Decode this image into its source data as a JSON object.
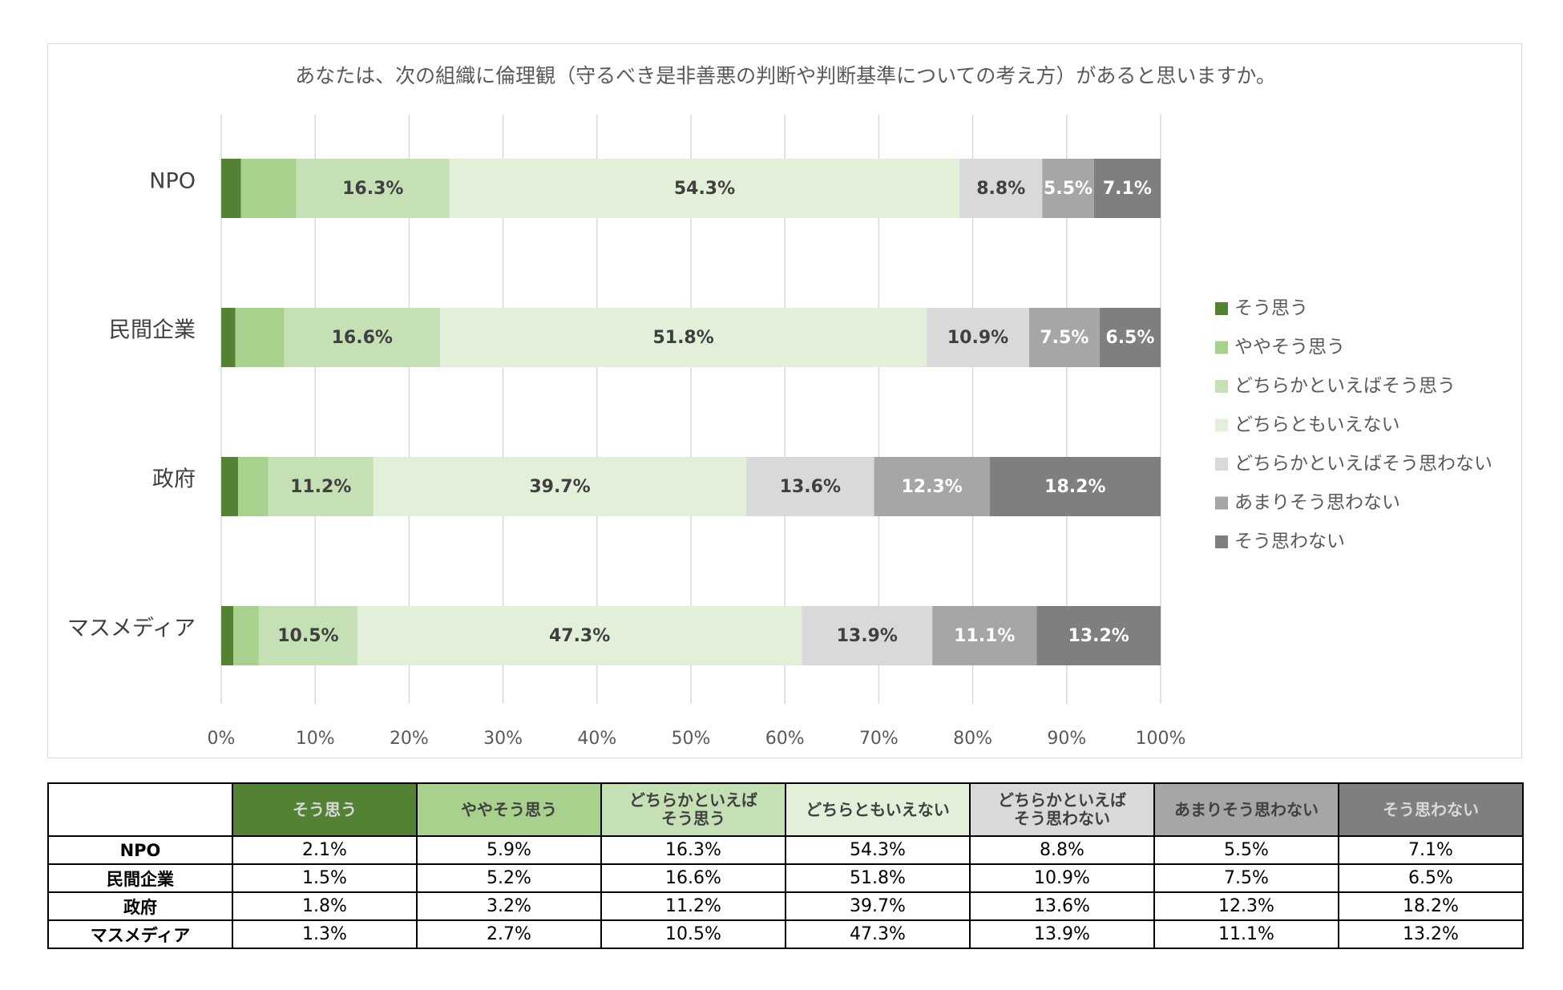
{
  "chart_data": {
    "type": "bar",
    "orientation": "horizontal",
    "stacked": "percent",
    "title": "あなたは、次の組織に倫理観（守るべき是非善悪の判断や判断基準についての考え方）があると思いますか。",
    "categories": [
      "NPO",
      "民間企業",
      "政府",
      "マスメディア"
    ],
    "series": [
      {
        "name": "そう思う",
        "color": "#548235",
        "label_color": "#ffffff",
        "values": [
          2.1,
          1.5,
          1.8,
          1.3
        ]
      },
      {
        "name": "ややそう思う",
        "color": "#a9d18e",
        "label_color": "#ffffff",
        "values": [
          5.9,
          5.2,
          3.2,
          2.7
        ]
      },
      {
        "name": "どちらかといえばそう思う",
        "color": "#c5e0b4",
        "label_color": "#404040",
        "values": [
          16.3,
          16.6,
          11.2,
          10.5
        ]
      },
      {
        "name": "どちらともいえない",
        "color": "#e2f0d9",
        "label_color": "#404040",
        "values": [
          54.3,
          51.8,
          39.7,
          47.3
        ]
      },
      {
        "name": "どちらかといえばそう思わない",
        "color": "#d9d9d9",
        "label_color": "#404040",
        "values": [
          8.8,
          10.9,
          13.6,
          13.9
        ]
      },
      {
        "name": "あまりそう思わない",
        "color": "#a6a6a6",
        "label_color": "#ffffff",
        "values": [
          5.5,
          7.5,
          12.3,
          11.1
        ]
      },
      {
        "name": "そう思わない",
        "color": "#7f7f7f",
        "label_color": "#ffffff",
        "values": [
          7.1,
          6.5,
          18.2,
          13.2
        ]
      }
    ],
    "data_labels": [
      [
        null,
        null,
        "16.3%",
        "54.3%",
        "8.8%",
        "5.5%",
        "7.1%"
      ],
      [
        null,
        null,
        "16.6%",
        "51.8%",
        "10.9%",
        "7.5%",
        "6.5%"
      ],
      [
        null,
        null,
        "11.2%",
        "39.7%",
        "13.6%",
        "12.3%",
        "18.2%"
      ],
      [
        null,
        null,
        "10.5%",
        "47.3%",
        "13.9%",
        "11.1%",
        "13.2%"
      ]
    ],
    "xlim": [
      0,
      100
    ],
    "xticks": [
      "0%",
      "10%",
      "20%",
      "30%",
      "40%",
      "50%",
      "60%",
      "70%",
      "80%",
      "90%",
      "100%"
    ],
    "grid": true,
    "legend_position": "right"
  },
  "table": {
    "headers": [
      "そう思う",
      "ややそう思う",
      "どちらかといえば\nそう思う",
      "どちらともいえない",
      "どちらかといえば\nそう思わない",
      "あまりそう思わない",
      "そう思わない"
    ],
    "header_colors": [
      "#548235",
      "#a9d18e",
      "#c5e0b4",
      "#e2f0d9",
      "#d9d9d9",
      "#a6a6a6",
      "#7f7f7f"
    ],
    "header_text_colors": [
      "#d9d9d9",
      "#404040",
      "#404040",
      "#404040",
      "#404040",
      "#404040",
      "#d9d9d9"
    ],
    "rows": [
      {
        "label": "NPO",
        "cells": [
          "2.1%",
          "5.9%",
          "16.3%",
          "54.3%",
          "8.8%",
          "5.5%",
          "7.1%"
        ]
      },
      {
        "label": "民間企業",
        "cells": [
          "1.5%",
          "5.2%",
          "16.6%",
          "51.8%",
          "10.9%",
          "7.5%",
          "6.5%"
        ]
      },
      {
        "label": "政府",
        "cells": [
          "1.8%",
          "3.2%",
          "11.2%",
          "39.7%",
          "13.6%",
          "12.3%",
          "18.2%"
        ]
      },
      {
        "label": "マスメディア",
        "cells": [
          "1.3%",
          "2.7%",
          "10.5%",
          "47.3%",
          "13.9%",
          "11.1%",
          "13.2%"
        ]
      }
    ]
  }
}
